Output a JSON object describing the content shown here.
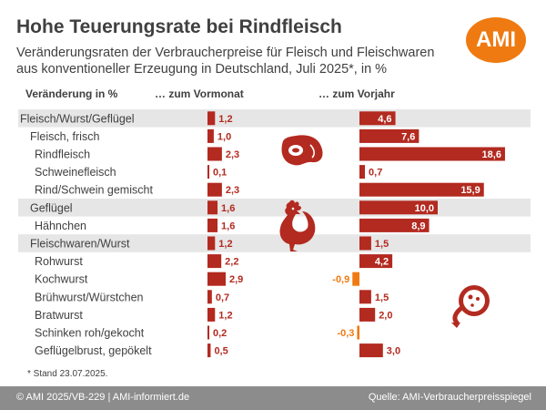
{
  "title": "Hohe Teuerungsrate bei Rindfleisch",
  "subtitle_line1": "Veränderungsraten der Verbraucherpreise für Fleisch und Fleischwaren",
  "subtitle_line2": "aus konventioneller Erzeugung in Deutschland, Juli 2025*, in %",
  "logo_text": "AMI",
  "header_category": "Veränderung in %",
  "header_month": "… zum Vormonat",
  "header_year": "… zum Vorjahr",
  "footnote": "* Stand 23.07.2025.",
  "footer_left": "© AMI 2025/VB-229 | AMI-informiert.de",
  "footer_right": "Quelle: AMI-Verbraucherpreisspiegel",
  "colors": {
    "bar": "#b32a20",
    "bar_value_inside": "#ffffff",
    "bar_value_outside": "#b32a20",
    "negative_value": "#ef7a12",
    "row_band": "#e6e6e6",
    "footer": "#8c8c8c",
    "logo": "#ef7a12",
    "text": "#404040"
  },
  "icons": [
    "steak-icon",
    "rooster-icon",
    "sausage-icon"
  ],
  "chart_data": {
    "type": "bar",
    "orientation": "horizontal",
    "categories": [
      "Fleisch/Wurst/Geflügel",
      "Fleisch, frisch",
      "Rindfleisch",
      "Schweinefleisch",
      "Rind/Schwein gemischt",
      "Geflügel",
      "Hähnchen",
      "Fleischwaren/Wurst",
      "Rohwurst",
      "Kochwurst",
      "Brühwurst/Würstchen",
      "Bratwurst",
      "Schinken roh/gekocht",
      "Geflügelbrust, gepökelt"
    ],
    "indent_level": [
      0,
      1,
      2,
      2,
      2,
      1,
      2,
      1,
      2,
      2,
      2,
      2,
      2,
      2
    ],
    "banded_rows": [
      true,
      false,
      false,
      false,
      false,
      true,
      false,
      true,
      false,
      false,
      false,
      false,
      false,
      false
    ],
    "series": [
      {
        "name": "… zum Vormonat",
        "values": [
          1.2,
          1.0,
          2.3,
          0.1,
          2.3,
          1.6,
          1.6,
          1.2,
          2.2,
          2.9,
          0.7,
          1.2,
          0.2,
          0.5
        ],
        "labels": [
          "1,2",
          "1,0",
          "2,3",
          "0,1",
          "2,3",
          "1,6",
          "1,6",
          "1,2",
          "2,2",
          "2,9",
          "0,7",
          "1,2",
          "0,2",
          "0,5"
        ]
      },
      {
        "name": "… zum Vorjahr",
        "values": [
          4.6,
          7.6,
          18.6,
          0.7,
          15.9,
          10.0,
          8.9,
          1.5,
          4.2,
          -0.9,
          1.5,
          2.0,
          -0.3,
          3.0
        ],
        "labels": [
          "4,6",
          "7,6",
          "18,6",
          "0,7",
          "15,9",
          "10,0",
          "8,9",
          "1,5",
          "4,2",
          "-0,9",
          "1,5",
          "2,0",
          "-0,3",
          "3,0"
        ]
      }
    ],
    "grid": false,
    "legend": "none"
  }
}
